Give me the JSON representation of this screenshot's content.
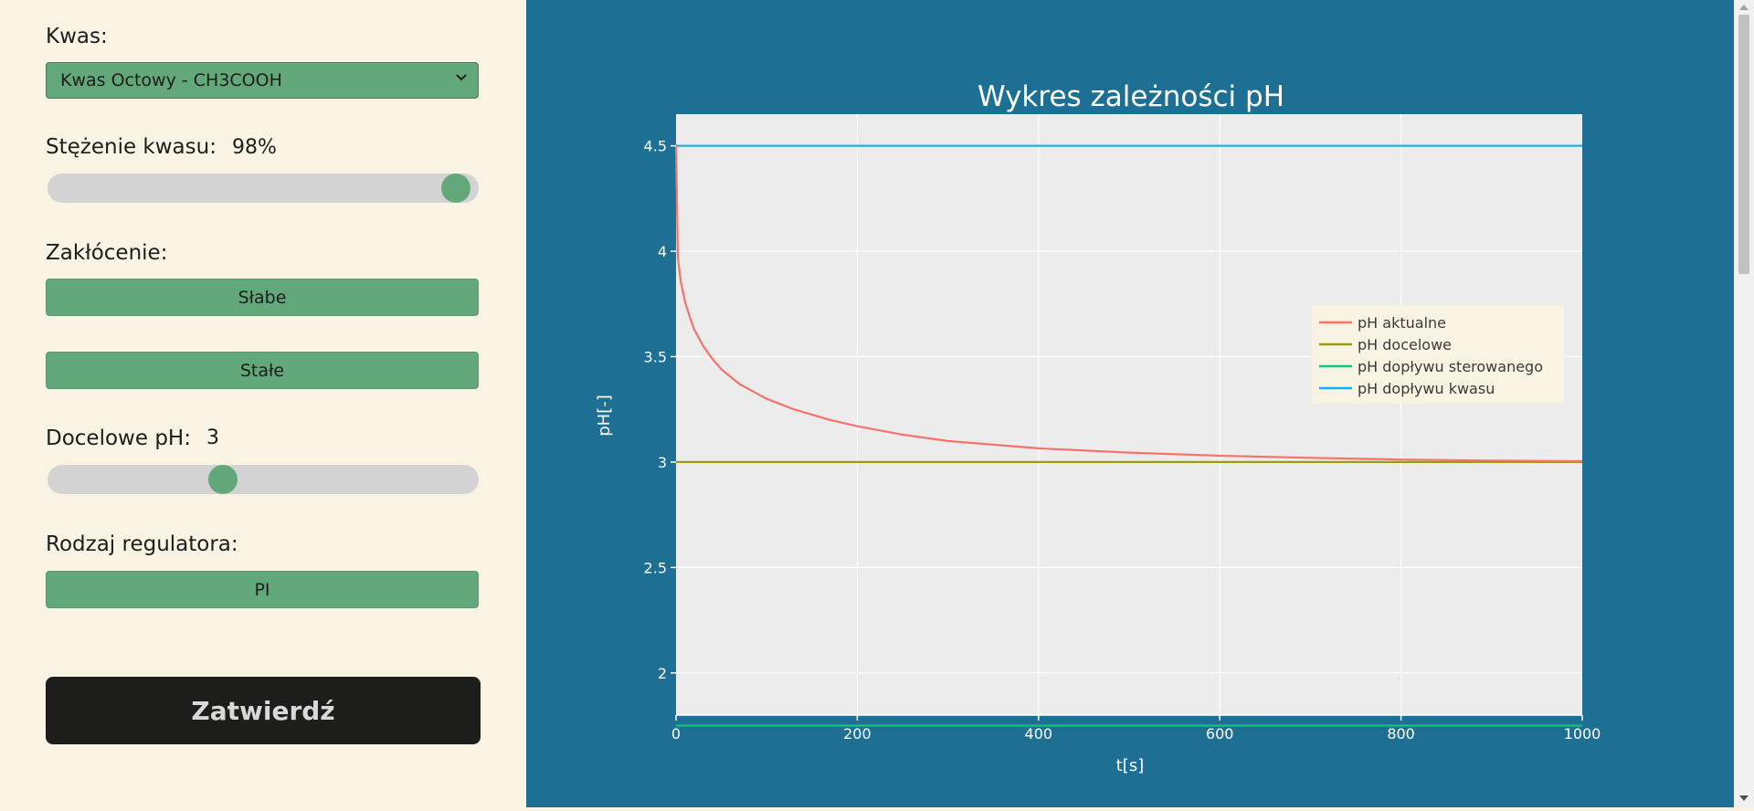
{
  "controls": {
    "acid_label": "Kwas:",
    "acid_selected": "Kwas Octowy - CH3COOH",
    "concentration_label": "Stężenie kwasu:",
    "concentration_value": "98%",
    "concentration_level": 0.98,
    "disturbance_label": "Zakłócenie:",
    "disturbance_buttons": [
      "Słabe",
      "Stałe"
    ],
    "target_ph_label": "Docelowe pH:",
    "target_ph_value": "3",
    "target_ph_level": 0.4,
    "regulator_label": "Rodzaj regulatora:",
    "regulator_button": "PI",
    "submit_label": "Zatwierdź"
  },
  "colors": {
    "sidebar_bg": "#f8f3e3",
    "accent_green": "#63a87a",
    "chart_bg": "#1d7094",
    "plot_bg": "#ececec",
    "submit_bg": "#1d1e1c"
  },
  "chart_data": {
    "type": "line",
    "title": "Wykres zależności pH",
    "xlabel": "t[s]",
    "ylabel": "pH[-]",
    "xlim": [
      0,
      1000
    ],
    "ylim": [
      1.8,
      4.65
    ],
    "xticks": [
      0,
      200,
      400,
      600,
      800,
      1000
    ],
    "yticks": [
      2,
      2.5,
      3,
      3.5,
      4,
      4.5
    ],
    "ytick_labels": [
      "2",
      "2.5",
      "3",
      "3.5",
      "4",
      "4.5"
    ],
    "grid": true,
    "legend_position": "right",
    "series": [
      {
        "name": "pH aktualne",
        "color": "#f5736a",
        "x": [
          0,
          2,
          5,
          10,
          15,
          20,
          30,
          40,
          50,
          70,
          100,
          130,
          170,
          200,
          250,
          300,
          400,
          500,
          600,
          700,
          800,
          900,
          1000
        ],
        "y": [
          4.5,
          3.97,
          3.86,
          3.76,
          3.69,
          3.63,
          3.55,
          3.49,
          3.44,
          3.37,
          3.3,
          3.25,
          3.2,
          3.17,
          3.13,
          3.1,
          3.065,
          3.045,
          3.03,
          3.02,
          3.012,
          3.007,
          3.004
        ]
      },
      {
        "name": "pH docelowe",
        "color": "#9a9a18",
        "x": [
          0,
          1000
        ],
        "y": [
          3,
          3
        ]
      },
      {
        "name": "pH dopływu sterowanego",
        "color": "#19bf7f",
        "x": [
          0,
          1000
        ],
        "y": [
          1.75,
          1.75
        ]
      },
      {
        "name": "pH dopływu kwasu",
        "color": "#1eaeeb",
        "x": [
          0,
          1000
        ],
        "y": [
          4.5,
          4.5
        ]
      }
    ]
  }
}
